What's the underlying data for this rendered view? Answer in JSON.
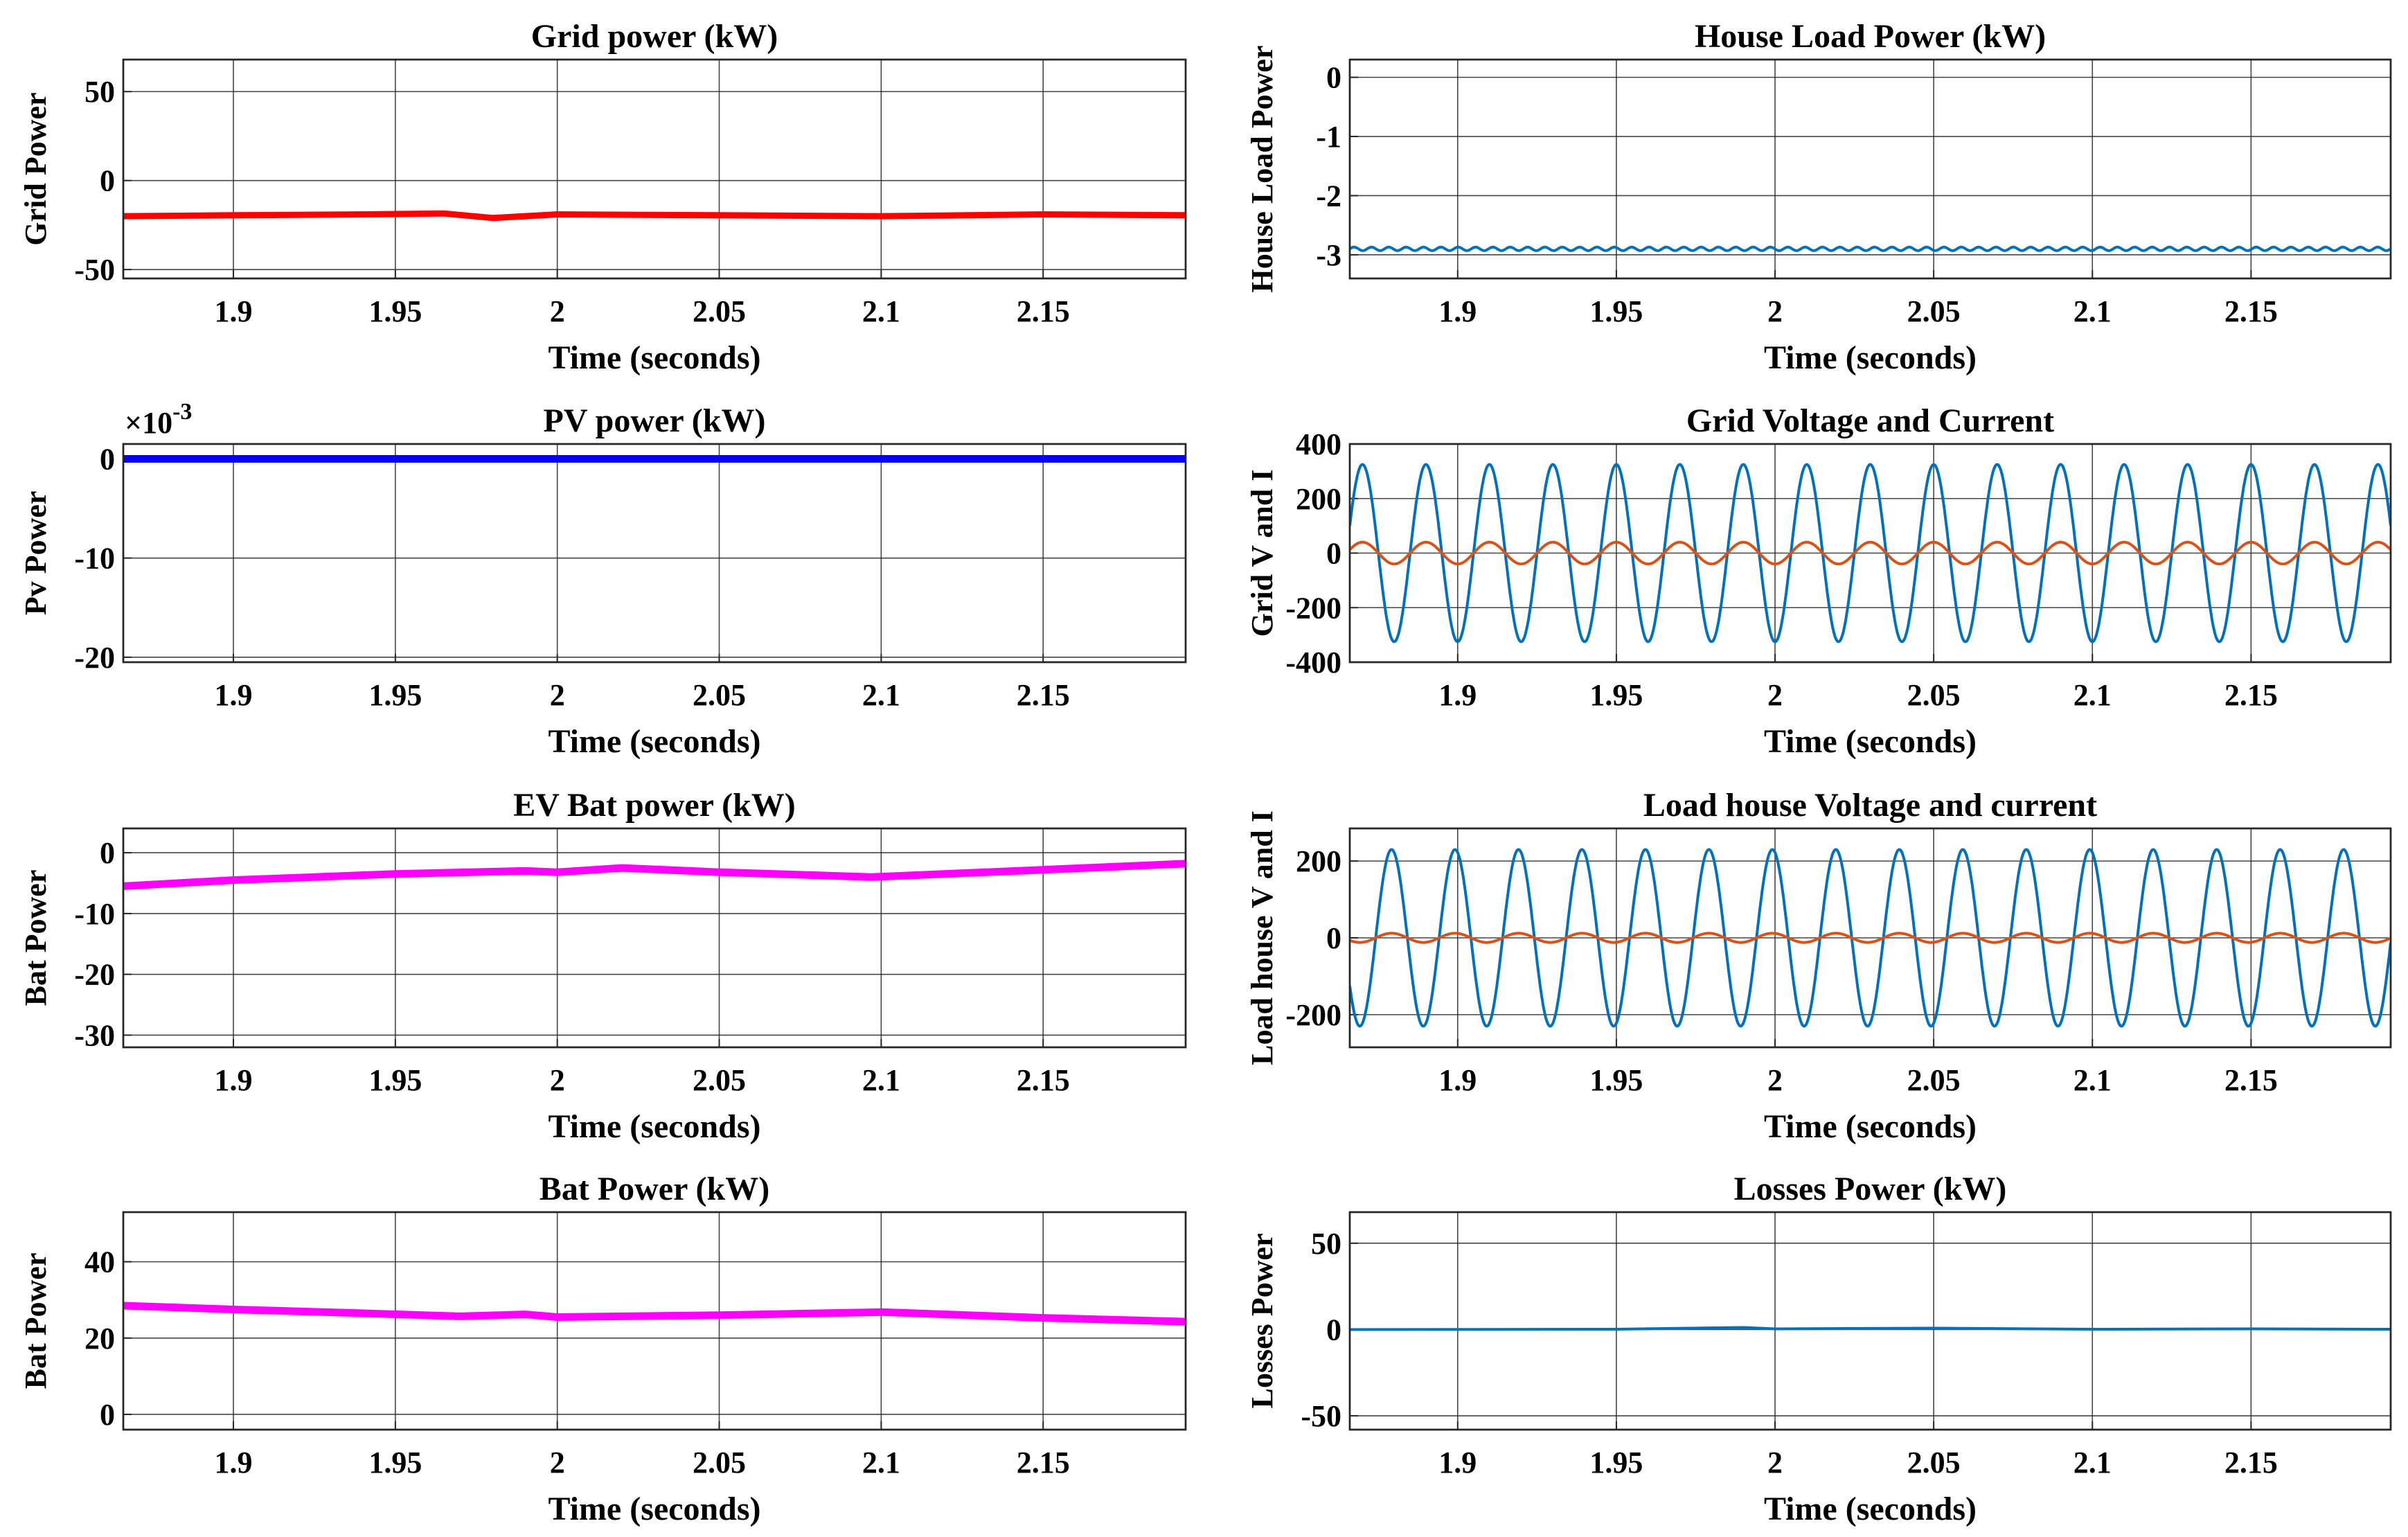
{
  "chart_data": [
    {
      "type": "line",
      "title": "Grid power (kW)",
      "xlabel": "Time (seconds)",
      "ylabel": "Grid Power",
      "xlim": [
        1.866,
        2.194
      ],
      "ylim": [
        -55,
        68
      ],
      "x_ticks": [
        1.9,
        1.95,
        2,
        2.05,
        2.1,
        2.15
      ],
      "x_tick_labels": [
        "1.9",
        "1.95",
        "2",
        "2.05",
        "2.1",
        "2.15"
      ],
      "y_ticks": [
        -50,
        0,
        50
      ],
      "y_tick_labels": [
        "-50",
        "0",
        "50"
      ],
      "grid": true,
      "series": [
        {
          "name": "Grid power",
          "color": "#ff0000",
          "line_width": 9,
          "x": [
            1.866,
            1.9,
            1.94,
            1.965,
            1.98,
            2.0,
            2.05,
            2.1,
            2.15,
            2.194
          ],
          "y": [
            -20,
            -19.5,
            -19,
            -18.5,
            -21,
            -19,
            -19.5,
            -20,
            -19,
            -19.5
          ]
        }
      ]
    },
    {
      "type": "line",
      "title": "House Load Power (kW)",
      "xlabel": "Time (seconds)",
      "ylabel": "House Load Power",
      "xlim": [
        1.866,
        2.194
      ],
      "ylim": [
        -3.4,
        0.3
      ],
      "x_ticks": [
        1.9,
        1.95,
        2,
        2.05,
        2.1,
        2.15
      ],
      "x_tick_labels": [
        "1.9",
        "1.95",
        "2",
        "2.05",
        "2.1",
        "2.15"
      ],
      "y_ticks": [
        -3,
        -2,
        -1,
        0
      ],
      "y_tick_labels": [
        "-3",
        "-2",
        "-1",
        "0"
      ],
      "grid": true,
      "series": [
        {
          "name": "House load power",
          "color": "#0072bd",
          "line_width": 4,
          "x": [
            1.866,
            2.194
          ],
          "y": [
            -2.9,
            -2.9
          ],
          "ripple_amplitude": 0.03,
          "ripple_cycles": 60
        }
      ]
    },
    {
      "type": "line",
      "title": "PV power (kW)",
      "xlabel": "Time (seconds)",
      "ylabel": "Pv Power",
      "multiplier": "×10",
      "multiplier_exp": "-3",
      "xlim": [
        1.866,
        2.194
      ],
      "ylim": [
        -20.5,
        1.5
      ],
      "x_ticks": [
        1.9,
        1.95,
        2,
        2.05,
        2.1,
        2.15
      ],
      "x_tick_labels": [
        "1.9",
        "1.95",
        "2",
        "2.05",
        "2.1",
        "2.15"
      ],
      "y_ticks": [
        -20,
        -10,
        0
      ],
      "y_tick_labels": [
        "-20",
        "-10",
        "0"
      ],
      "grid": true,
      "series": [
        {
          "name": "PV power",
          "color": "#0000ff",
          "line_width": 11,
          "x": [
            1.866,
            2.194
          ],
          "y": [
            0,
            0
          ]
        }
      ]
    },
    {
      "type": "line",
      "title": "Grid Voltage and Current",
      "xlabel": "Time (seconds)",
      "ylabel": "Grid V and I",
      "xlim": [
        1.866,
        2.194
      ],
      "ylim": [
        -400,
        400
      ],
      "x_ticks": [
        1.9,
        1.95,
        2,
        2.05,
        2.1,
        2.15
      ],
      "x_tick_labels": [
        "1.9",
        "1.95",
        "2",
        "2.05",
        "2.1",
        "2.15"
      ],
      "y_ticks": [
        -400,
        -200,
        0,
        200,
        400
      ],
      "y_tick_labels": [
        "-400",
        "-200",
        "0",
        "200",
        "400"
      ],
      "grid": true,
      "series": [
        {
          "name": "Grid voltage",
          "color": "#0072bd",
          "line_width": 4,
          "sine": {
            "amplitude": 325,
            "frequency_hz": 50,
            "phase_deg": 270
          }
        },
        {
          "name": "Grid current",
          "color": "#d95319",
          "line_width": 4,
          "sine": {
            "amplitude": 40,
            "frequency_hz": 50,
            "phase_deg": 270
          }
        }
      ]
    },
    {
      "type": "line",
      "title": "EV Bat power (kW)",
      "xlabel": "Time (seconds)",
      "ylabel": "Bat Power",
      "xlim": [
        1.866,
        2.194
      ],
      "ylim": [
        -32,
        4
      ],
      "x_ticks": [
        1.9,
        1.95,
        2,
        2.05,
        2.1,
        2.15
      ],
      "x_tick_labels": [
        "1.9",
        "1.95",
        "2",
        "2.05",
        "2.1",
        "2.15"
      ],
      "y_ticks": [
        -30,
        -20,
        -10,
        0
      ],
      "y_tick_labels": [
        "-30",
        "-20",
        "-10",
        "0"
      ],
      "grid": true,
      "series": [
        {
          "name": "EV battery power",
          "color": "#ff00ff",
          "line_width": 11,
          "x": [
            1.866,
            1.9,
            1.95,
            1.99,
            2.0,
            2.02,
            2.05,
            2.097,
            2.15,
            2.194
          ],
          "y": [
            -5.5,
            -4.5,
            -3.5,
            -3.0,
            -3.2,
            -2.5,
            -3.2,
            -4.0,
            -2.8,
            -1.8
          ]
        }
      ]
    },
    {
      "type": "line",
      "title": "Load house Voltage and current",
      "xlabel": "Time (seconds)",
      "ylabel": "Load house V and I",
      "xlim": [
        1.866,
        2.194
      ],
      "ylim": [
        -285,
        285
      ],
      "x_ticks": [
        1.9,
        1.95,
        2,
        2.05,
        2.1,
        2.15
      ],
      "x_tick_labels": [
        "1.9",
        "1.95",
        "2",
        "2.05",
        "2.1",
        "2.15"
      ],
      "y_ticks": [
        -200,
        0,
        200
      ],
      "y_tick_labels": [
        "-200",
        "0",
        "200"
      ],
      "grid": true,
      "series": [
        {
          "name": "Load house voltage",
          "color": "#0072bd",
          "line_width": 4,
          "sine": {
            "amplitude": 230,
            "frequency_hz": 50,
            "phase_deg": 105
          }
        },
        {
          "name": "Load house current",
          "color": "#d95319",
          "line_width": 4,
          "sine": {
            "amplitude": 12,
            "frequency_hz": 50,
            "phase_deg": 105
          }
        }
      ]
    },
    {
      "type": "line",
      "title": "Bat Power (kW)",
      "xlabel": "Time (seconds)",
      "ylabel": "Bat Power",
      "xlim": [
        1.866,
        2.194
      ],
      "ylim": [
        -4,
        53
      ],
      "x_ticks": [
        1.9,
        1.95,
        2,
        2.05,
        2.1,
        2.15
      ],
      "x_tick_labels": [
        "1.9",
        "1.95",
        "2",
        "2.05",
        "2.1",
        "2.15"
      ],
      "y_ticks": [
        0,
        20,
        40
      ],
      "y_tick_labels": [
        "0",
        "20",
        "40"
      ],
      "grid": true,
      "series": [
        {
          "name": "Battery power",
          "color": "#ff00ff",
          "line_width": 11,
          "x": [
            1.866,
            1.9,
            1.94,
            1.97,
            1.99,
            2.0,
            2.05,
            2.1,
            2.15,
            2.194
          ],
          "y": [
            28.5,
            27.5,
            26.5,
            25.7,
            26.2,
            25.5,
            26.0,
            26.8,
            25.3,
            24.3
          ]
        }
      ]
    },
    {
      "type": "line",
      "title": "Losses Power (kW)",
      "xlabel": "Time (seconds)",
      "ylabel": "Losses Power",
      "xlim": [
        1.866,
        2.194
      ],
      "ylim": [
        -58,
        68
      ],
      "x_ticks": [
        1.9,
        1.95,
        2,
        2.05,
        2.1,
        2.15
      ],
      "x_tick_labels": [
        "1.9",
        "1.95",
        "2",
        "2.05",
        "2.1",
        "2.15"
      ],
      "y_ticks": [
        -50,
        0,
        50
      ],
      "y_tick_labels": [
        "-50",
        "0",
        "50"
      ],
      "grid": true,
      "series": [
        {
          "name": "Losses power",
          "color": "#0072bd",
          "line_width": 4,
          "x": [
            1.866,
            1.95,
            1.99,
            2.0,
            2.05,
            2.1,
            2.15,
            2.194
          ],
          "y": [
            0,
            0.2,
            1.2,
            0.4,
            0.8,
            0.2,
            0.4,
            0.2
          ]
        }
      ]
    }
  ]
}
